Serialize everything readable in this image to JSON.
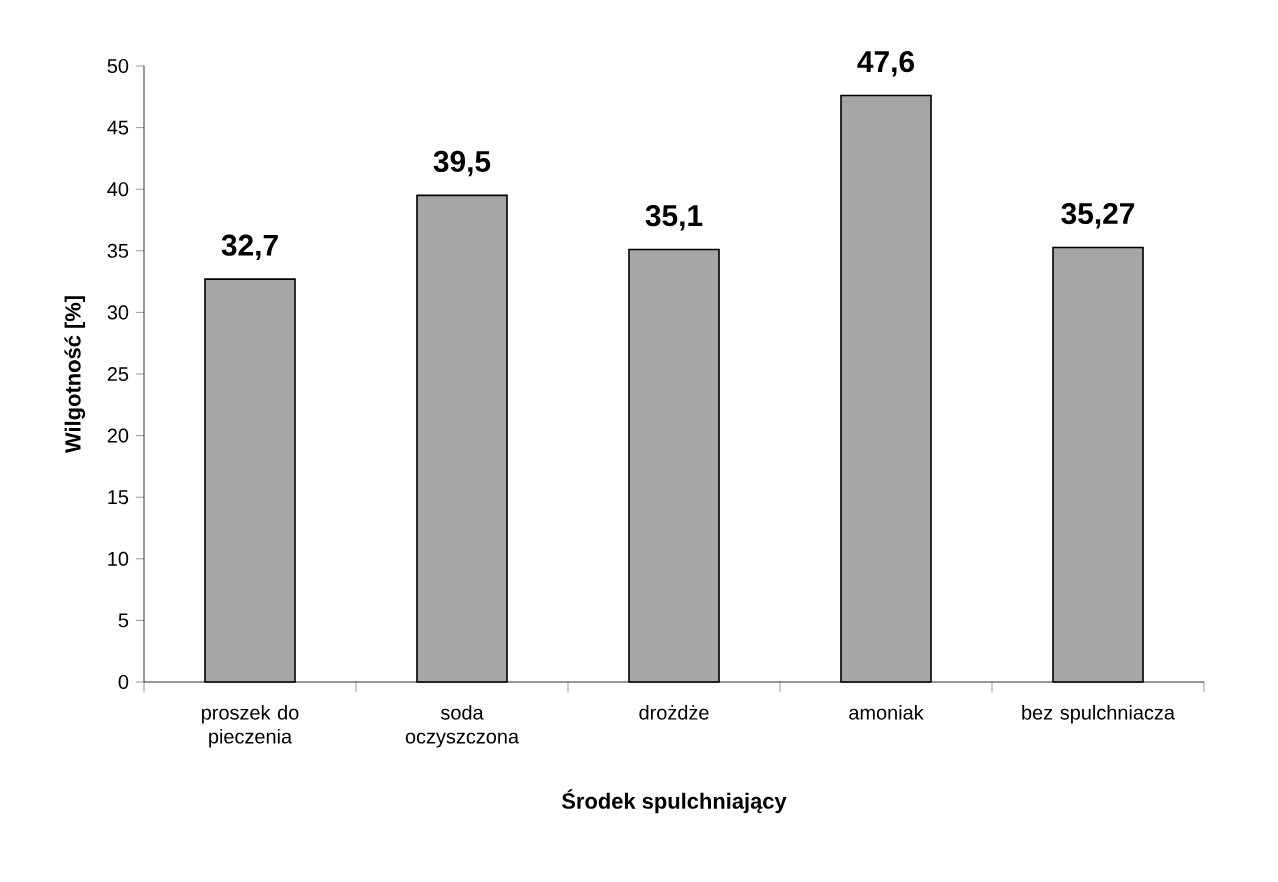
{
  "chart_data": {
    "type": "bar",
    "xlabel": "Środek spulchniający",
    "ylabel": "Wilgotność [%]",
    "categories": [
      "proszek do pieczenia",
      "soda oczyszczona",
      "drożdże",
      "amoniak",
      "bez spulchniacza"
    ],
    "values": [
      32.7,
      39.5,
      35.1,
      47.6,
      35.27
    ],
    "value_labels": [
      "32,7",
      "39,5",
      "35,1",
      "47,6",
      "35,27"
    ],
    "color": "#a6a6a6",
    "ylim": [
      0,
      50
    ],
    "yticks": [
      0,
      5,
      10,
      15,
      20,
      25,
      30,
      35,
      40,
      45,
      50
    ],
    "grid": false
  }
}
